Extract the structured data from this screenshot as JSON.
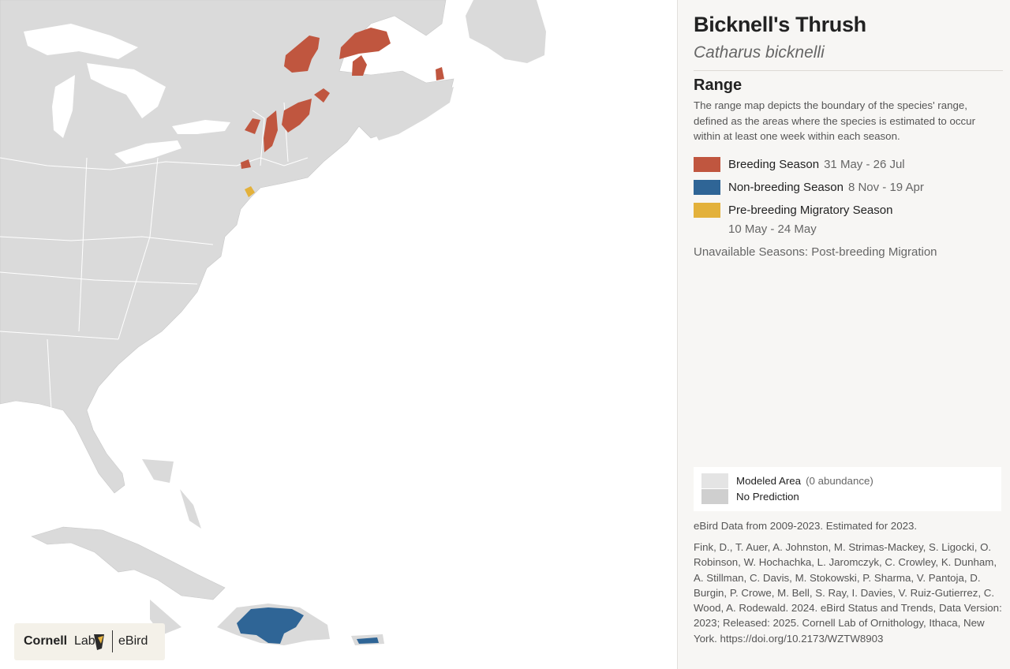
{
  "header": {
    "title": "Bicknell's Thrush",
    "subtitle": "Catharus bicknelli"
  },
  "range": {
    "heading": "Range",
    "description": "The range map depicts the boundary of the species' range, defined as the areas where the species is estimated to occur within at least one week within each season.",
    "seasons": [
      {
        "name": "Breeding Season",
        "dates": "31 May - 26 Jul",
        "color": "#c0563f"
      },
      {
        "name": "Non-breeding Season",
        "dates": "8 Nov - 19 Apr",
        "color": "#2f6596"
      },
      {
        "name": "Pre-breeding Migratory Season",
        "dates": "10 May - 24 May",
        "color": "#e3b13b"
      }
    ],
    "unavailable": "Unavailable Seasons: Post-breeding Migration"
  },
  "map_key": [
    {
      "label": "Modeled Area",
      "note": "(0 abundance)"
    },
    {
      "label": "No Prediction"
    }
  ],
  "data_note": "eBird Data from 2009-2023. Estimated for 2023.",
  "citation": "Fink, D., T. Auer, A. Johnston, M. Strimas-Mackey, S. Ligocki, O. Robinson, W. Hochachka, L. Jaromczyk, C. Crowley, K. Dunham, A. Stillman, C. Davis, M. Stokowski, P. Sharma, V. Pantoja, D. Burgin, P. Crowe, M. Bell, S. Ray, I. Davies, V. Ruiz-Gutierrez, C. Wood, A. Rodewald. 2024. eBird Status and Trends, Data Version: 2023; Released: 2025. Cornell Lab of Ornithology, Ithaca, New York. https://doi.org/10.2173/WZTW8903",
  "logo": {
    "org": "Cornell",
    "org_suffix": "Lab",
    "product": "eBird"
  }
}
